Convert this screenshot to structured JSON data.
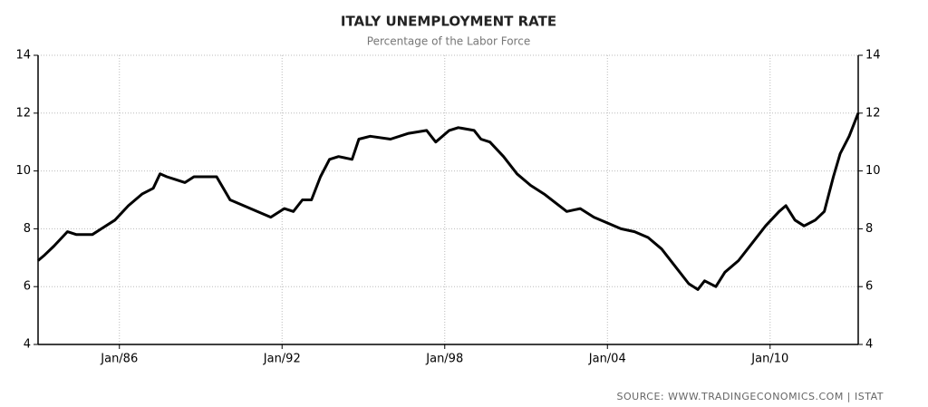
{
  "chart_data": {
    "type": "line",
    "title": "ITALY UNEMPLOYMENT RATE",
    "subtitle": "Percentage of the Labor Force",
    "source": "SOURCE:  WWW.TRADINGECONOMICS.COM  |  ISTAT",
    "x": [
      "1983-01",
      "1983-04",
      "1983-08",
      "1984-02",
      "1984-06",
      "1985-01",
      "1985-05",
      "1985-11",
      "1986-05",
      "1986-11",
      "1987-04",
      "1987-07",
      "1987-10",
      "1988-02",
      "1988-06",
      "1988-10",
      "1989-08",
      "1990-02",
      "1990-08",
      "1991-02",
      "1991-08",
      "1992-02",
      "1992-06",
      "1992-10",
      "1993-02",
      "1993-06",
      "1993-10",
      "1994-02",
      "1994-08",
      "1994-11",
      "1995-04",
      "1996-01",
      "1996-09",
      "1997-05",
      "1997-09",
      "1998-03",
      "1998-07",
      "1999-02",
      "1999-05",
      "1999-09",
      "2000-03",
      "2000-09",
      "2001-03",
      "2001-09",
      "2002-02",
      "2002-07",
      "2003-01",
      "2003-07",
      "2004-01",
      "2004-07",
      "2005-01",
      "2005-07",
      "2006-01",
      "2006-07",
      "2007-01",
      "2007-05",
      "2007-08",
      "2008-01",
      "2008-05",
      "2008-11",
      "2009-05",
      "2009-11",
      "2010-05",
      "2010-08",
      "2010-12",
      "2011-04",
      "2011-09",
      "2012-01",
      "2012-05",
      "2012-08",
      "2012-12",
      "2013-04"
    ],
    "series": [
      {
        "name": "Unemployment rate",
        "color": "#000000",
        "values": [
          6.9,
          7.1,
          7.4,
          7.9,
          7.8,
          7.8,
          8.0,
          8.3,
          8.8,
          9.2,
          9.4,
          9.9,
          9.8,
          9.7,
          9.6,
          9.8,
          9.8,
          9.0,
          8.8,
          8.6,
          8.4,
          8.7,
          8.6,
          9.0,
          9.0,
          9.8,
          10.4,
          10.5,
          10.4,
          11.1,
          11.2,
          11.1,
          11.3,
          11.4,
          11.0,
          11.4,
          11.5,
          11.4,
          11.1,
          11.0,
          10.5,
          9.9,
          9.5,
          9.2,
          8.9,
          8.6,
          8.7,
          8.4,
          8.2,
          8.0,
          7.9,
          7.7,
          7.3,
          6.7,
          6.1,
          5.9,
          6.2,
          6.0,
          6.5,
          6.9,
          7.5,
          8.1,
          8.6,
          8.8,
          8.3,
          8.1,
          8.3,
          8.6,
          9.8,
          10.6,
          11.2,
          12.0
        ]
      }
    ],
    "xlim": [
      "1983-01",
      "2013-04"
    ],
    "xticks": [
      {
        "value": "1986-01",
        "label": "Jan/86"
      },
      {
        "value": "1992-01",
        "label": "Jan/92"
      },
      {
        "value": "1998-01",
        "label": "Jan/98"
      },
      {
        "value": "2004-01",
        "label": "Jan/04"
      },
      {
        "value": "2010-01",
        "label": "Jan/10"
      }
    ],
    "ylim": [
      4,
      14
    ],
    "yticks": [
      4,
      6,
      8,
      10,
      12,
      14
    ],
    "grid": true
  }
}
